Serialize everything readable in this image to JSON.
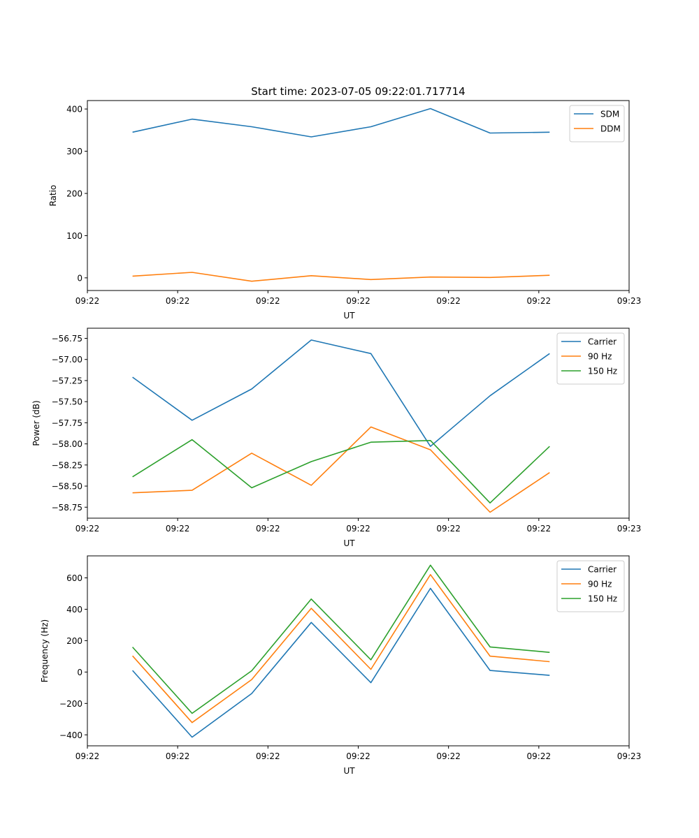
{
  "title": "Start time: 2023-07-05 09:22:01.717714",
  "chart_data": [
    {
      "type": "line",
      "xlabel": "UT",
      "ylabel": "Ratio",
      "xlim": [
        0,
        9
      ],
      "ylim": [
        -30,
        420
      ],
      "x_ticks": [
        0,
        1.5,
        3,
        4.5,
        6,
        7.5,
        9
      ],
      "x_tick_labels": [
        "09:22",
        "09:22",
        "09:22",
        "09:22",
        "09:22",
        "09:22",
        "09:23"
      ],
      "y_ticks": [
        0,
        100,
        200,
        300,
        400
      ],
      "y_tick_labels": [
        "0",
        "100",
        "200",
        "300",
        "400"
      ],
      "x": [
        0.75,
        1.74,
        2.73,
        3.72,
        4.71,
        5.7,
        6.69,
        7.68
      ],
      "series": [
        {
          "name": "SDM",
          "color": "#1f77b4",
          "values": [
            345,
            376,
            358,
            334,
            358,
            401,
            343,
            345
          ]
        },
        {
          "name": "DDM",
          "color": "#ff7f0e",
          "values": [
            4,
            13,
            -8,
            5,
            -4,
            2,
            1,
            6
          ]
        }
      ],
      "legend": "upper right"
    },
    {
      "type": "line",
      "xlabel": "UT",
      "ylabel": "Power (dB)",
      "xlim": [
        0,
        9
      ],
      "ylim": [
        -58.88,
        -56.63
      ],
      "x_ticks": [
        0,
        1.5,
        3,
        4.5,
        6,
        7.5,
        9
      ],
      "x_tick_labels": [
        "09:22",
        "09:22",
        "09:22",
        "09:22",
        "09:22",
        "09:22",
        "09:23"
      ],
      "y_ticks": [
        -58.75,
        -58.5,
        -58.25,
        -58.0,
        -57.75,
        -57.5,
        -57.25,
        -57.0,
        -56.75
      ],
      "y_tick_labels": [
        "−58.75",
        "−58.50",
        "−58.25",
        "−58.00",
        "−57.75",
        "−57.50",
        "−57.25",
        "−57.00",
        "−56.75"
      ],
      "x": [
        0.75,
        1.74,
        2.73,
        3.72,
        4.71,
        5.7,
        6.69,
        7.68
      ],
      "series": [
        {
          "name": "Carrier",
          "color": "#1f77b4",
          "values": [
            -57.21,
            -57.72,
            -57.35,
            -56.77,
            -56.93,
            -58.03,
            -57.43,
            -56.93
          ]
        },
        {
          "name": "90 Hz",
          "color": "#ff7f0e",
          "values": [
            -58.58,
            -58.55,
            -58.11,
            -58.49,
            -57.8,
            -58.07,
            -58.81,
            -58.34
          ]
        },
        {
          "name": "150 Hz",
          "color": "#2ca02c",
          "values": [
            -58.39,
            -57.95,
            -58.52,
            -58.21,
            -57.98,
            -57.96,
            -58.7,
            -58.03
          ]
        }
      ],
      "legend": "upper right"
    },
    {
      "type": "line",
      "xlabel": "UT",
      "ylabel": "Frequency (Hz)",
      "xlim": [
        0,
        9
      ],
      "ylim": [
        -470,
        740
      ],
      "x_ticks": [
        0,
        1.5,
        3,
        4.5,
        6,
        7.5,
        9
      ],
      "x_tick_labels": [
        "09:22",
        "09:22",
        "09:22",
        "09:22",
        "09:22",
        "09:22",
        "09:23"
      ],
      "y_ticks": [
        -400,
        -200,
        0,
        200,
        400,
        600
      ],
      "y_tick_labels": [
        "−400",
        "−200",
        "0",
        "200",
        "400",
        "600"
      ],
      "x": [
        0.75,
        1.74,
        2.73,
        3.72,
        4.71,
        5.7,
        6.69,
        7.68
      ],
      "series": [
        {
          "name": "Carrier",
          "color": "#1f77b4",
          "values": [
            10,
            -415,
            -137,
            316,
            -68,
            533,
            10,
            -21
          ]
        },
        {
          "name": "90 Hz",
          "color": "#ff7f0e",
          "values": [
            103,
            -322,
            -48,
            406,
            17,
            621,
            101,
            66
          ]
        },
        {
          "name": "150 Hz",
          "color": "#2ca02c",
          "values": [
            159,
            -263,
            8,
            465,
            78,
            681,
            160,
            125
          ]
        }
      ],
      "legend": "upper right"
    }
  ]
}
